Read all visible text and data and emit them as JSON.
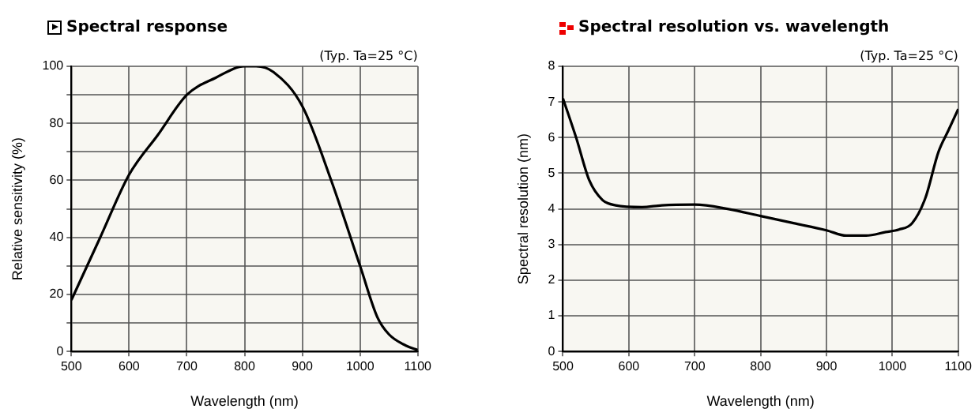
{
  "chart_data": [
    {
      "type": "line",
      "title": "Spectral response",
      "xlabel": "Wavelength (nm)",
      "ylabel": "Relative sensitivity (%)",
      "annotations": [
        "(Typ. Ta=25 °C)"
      ],
      "x": [
        500,
        550,
        600,
        650,
        700,
        750,
        800,
        820,
        850,
        900,
        950,
        1000,
        1030,
        1050,
        1080,
        1100
      ],
      "series": [
        {
          "color": "#000000",
          "values": [
            18,
            40,
            62,
            76,
            90,
            96,
            100,
            100,
            98,
            86,
            60,
            30,
            12,
            6,
            2,
            0.5
          ]
        }
      ],
      "xlim": [
        500,
        1100
      ],
      "xticks": [
        500,
        600,
        700,
        800,
        900,
        1000,
        1100
      ],
      "ylim": [
        0,
        100
      ],
      "yticks": [
        0,
        {
          "value": 10,
          "label": null
        },
        20,
        {
          "value": 30,
          "label": null
        },
        40,
        {
          "value": 50,
          "label": null
        },
        60,
        {
          "value": 70,
          "label": null
        },
        80,
        {
          "value": 90,
          "label": null
        },
        100
      ],
      "grid": true,
      "legend": false,
      "marker": "none",
      "line_style": "solid"
    },
    {
      "type": "line",
      "title": "Spectral resolution vs. wavelength",
      "xlabel": "Wavelength (nm)",
      "ylabel": "Spectral resolution (nm)",
      "annotations": [
        "(Typ. Ta=25 °C)"
      ],
      "x": [
        500,
        520,
        540,
        560,
        580,
        620,
        650,
        700,
        750,
        800,
        850,
        900,
        930,
        960,
        990,
        1010,
        1030,
        1050,
        1070,
        1085,
        1100
      ],
      "series": [
        {
          "color": "#000000",
          "values": [
            7.1,
            6.0,
            4.8,
            4.25,
            4.1,
            4.05,
            4.1,
            4.12,
            4.0,
            3.8,
            3.6,
            3.4,
            3.25,
            3.25,
            3.35,
            3.42,
            3.6,
            4.3,
            5.6,
            6.2,
            6.8
          ]
        }
      ],
      "xlim": [
        500,
        1100
      ],
      "xticks": [
        500,
        600,
        700,
        800,
        900,
        1000,
        1100
      ],
      "ylim": [
        0,
        8
      ],
      "yticks": [
        0,
        1,
        2,
        3,
        4,
        5,
        6,
        7,
        8
      ],
      "grid": true,
      "legend": false,
      "marker": "none",
      "line_style": "solid"
    }
  ]
}
